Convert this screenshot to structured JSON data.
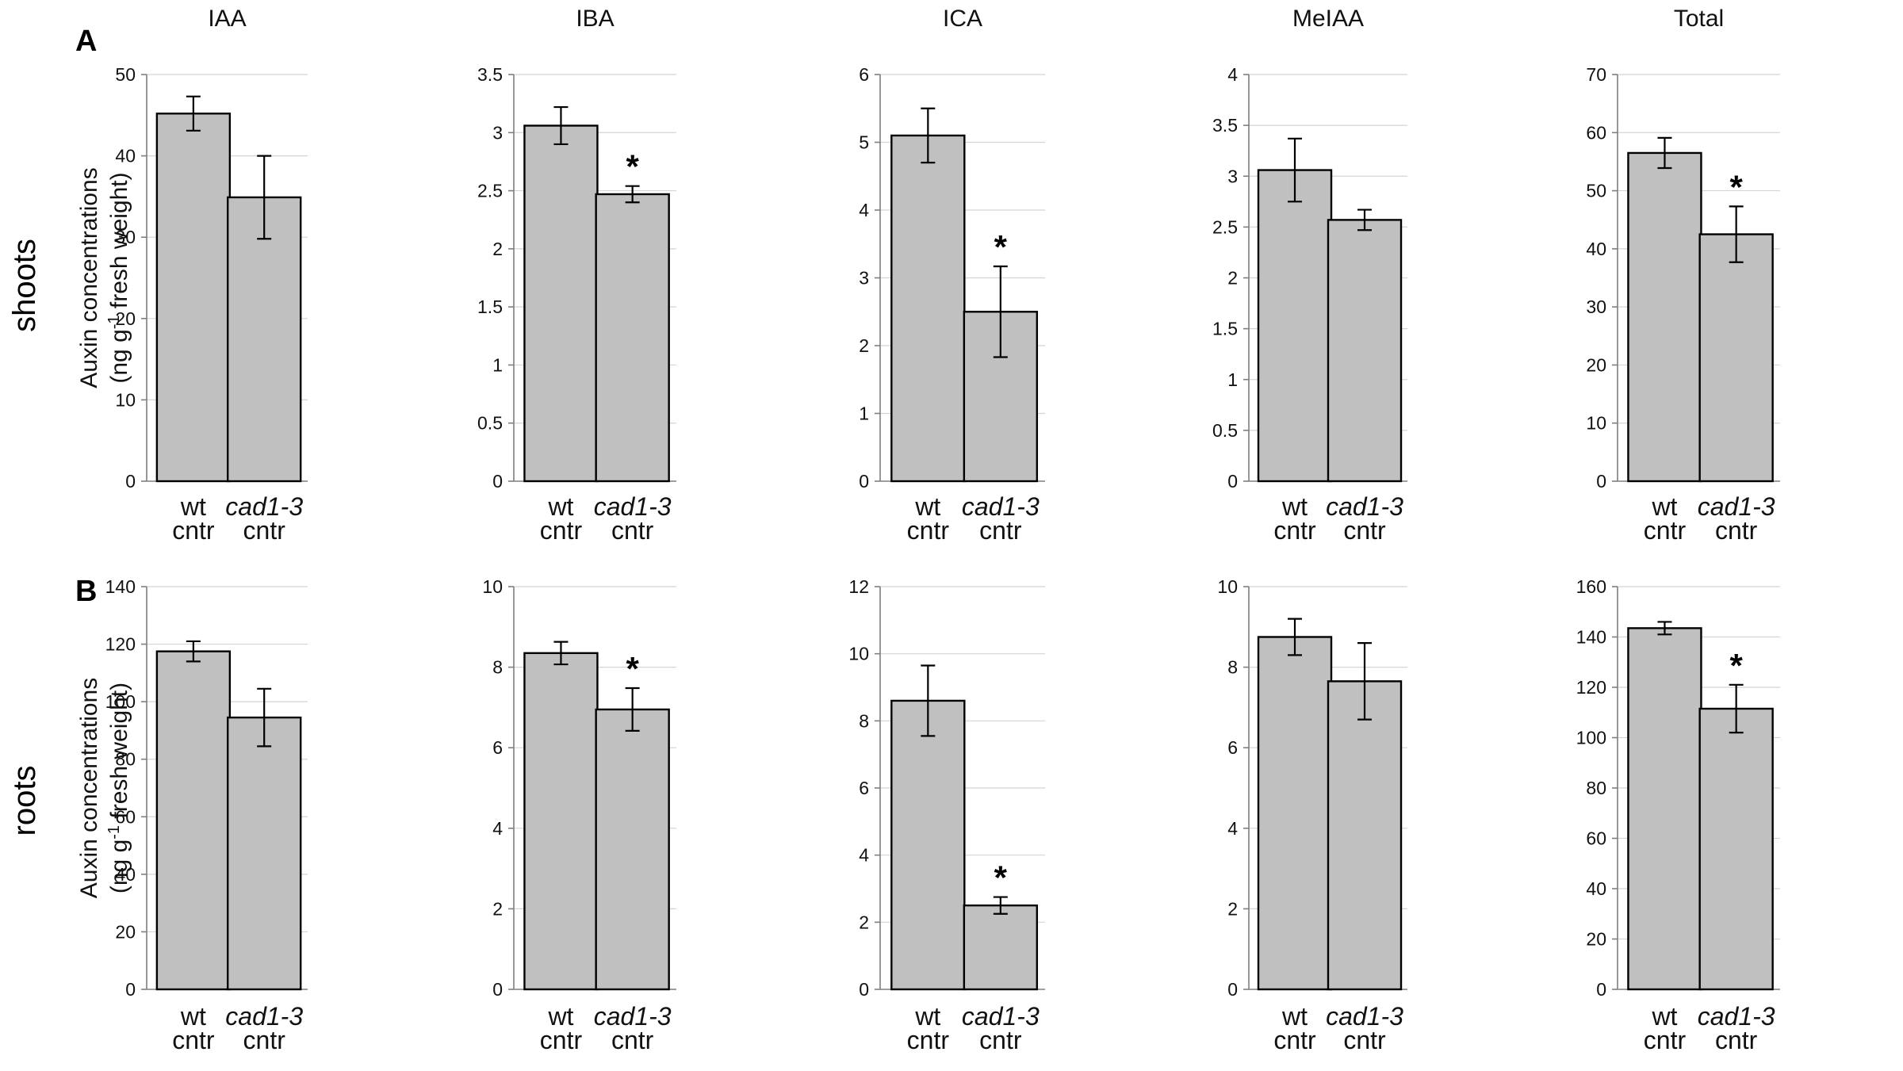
{
  "panel_labels": [
    "A",
    "B"
  ],
  "row_labels": [
    "shoots",
    "roots"
  ],
  "y_axis_label": {
    "line1": "Auxin concentrations",
    "line2_prefix": "(ng g",
    "line2_sup": "-1",
    "line2_suffix": " fresh weight)"
  },
  "categories": [
    {
      "line1": "wt",
      "line1_italic": false,
      "line2": "cntr"
    },
    {
      "line1": "cad1-3",
      "line1_italic": true,
      "line2": "cntr"
    }
  ],
  "significance_marker": "*",
  "colors": {
    "bar_fill": "#c0c0c0",
    "bar_stroke": "#000000",
    "grid": "#d4d4d4",
    "axis": "#7f7f7f"
  },
  "chart_data": [
    {
      "type": "bar",
      "row": "shoots",
      "title": "IAA",
      "categories": [
        "wt cntr",
        "cad1-3 cntr"
      ],
      "values": [
        45.2,
        34.9
      ],
      "errors": [
        2.1,
        5.1
      ],
      "significant": [
        false,
        false
      ],
      "ylim": [
        0,
        50
      ],
      "ticks": [
        "0",
        "10",
        "20",
        "30",
        "40",
        "50"
      ],
      "ylabel": "Auxin concentrations (ng g-1 fresh weight)"
    },
    {
      "type": "bar",
      "row": "shoots",
      "title": "IBA",
      "categories": [
        "wt cntr",
        "cad1-3 cntr"
      ],
      "values": [
        3.06,
        2.47
      ],
      "errors": [
        0.16,
        0.07
      ],
      "significant": [
        false,
        true
      ],
      "ylim": [
        0,
        3.5
      ],
      "ticks": [
        "0",
        "0.5",
        "1",
        "1.5",
        "2",
        "2.5",
        "3",
        "3.5"
      ]
    },
    {
      "type": "bar",
      "row": "shoots",
      "title": "ICA",
      "categories": [
        "wt cntr",
        "cad1-3 cntr"
      ],
      "values": [
        5.1,
        2.5
      ],
      "errors": [
        0.4,
        0.67
      ],
      "significant": [
        false,
        true
      ],
      "ylim": [
        0,
        6
      ],
      "ticks": [
        "0",
        "1",
        "2",
        "3",
        "4",
        "5",
        "6"
      ]
    },
    {
      "type": "bar",
      "row": "shoots",
      "title": "MeIAA",
      "categories": [
        "wt cntr",
        "cad1-3 cntr"
      ],
      "values": [
        3.06,
        2.57
      ],
      "errors": [
        0.31,
        0.1
      ],
      "significant": [
        false,
        false
      ],
      "ylim": [
        0,
        4
      ],
      "ticks": [
        "0",
        "0.5",
        "1",
        "1.5",
        "2",
        "2.5",
        "3",
        "3.5",
        "4"
      ]
    },
    {
      "type": "bar",
      "row": "shoots",
      "title": "Total",
      "categories": [
        "wt cntr",
        "cad1-3 cntr"
      ],
      "values": [
        56.5,
        42.5
      ],
      "errors": [
        2.6,
        4.8
      ],
      "significant": [
        false,
        true
      ],
      "ylim": [
        0,
        70
      ],
      "ticks": [
        "0",
        "10",
        "20",
        "30",
        "40",
        "50",
        "60",
        "70"
      ]
    },
    {
      "type": "bar",
      "row": "roots",
      "title": "",
      "categories": [
        "wt cntr",
        "cad1-3 cntr"
      ],
      "values": [
        117.5,
        94.5
      ],
      "errors": [
        3.5,
        10.0
      ],
      "significant": [
        false,
        false
      ],
      "ylim": [
        0,
        140
      ],
      "ticks": [
        "0",
        "20",
        "40",
        "60",
        "80",
        "100",
        "120",
        "140"
      ],
      "ylabel": "Auxin concentrations (ng g-1 fresh weight)"
    },
    {
      "type": "bar",
      "row": "roots",
      "title": "",
      "categories": [
        "wt cntr",
        "cad1-3 cntr"
      ],
      "values": [
        8.35,
        6.95
      ],
      "errors": [
        0.28,
        0.53
      ],
      "significant": [
        false,
        true
      ],
      "ylim": [
        0,
        10
      ],
      "ticks": [
        "0",
        "2",
        "4",
        "6",
        "8",
        "10"
      ]
    },
    {
      "type": "bar",
      "row": "roots",
      "title": "",
      "categories": [
        "wt cntr",
        "cad1-3 cntr"
      ],
      "values": [
        8.6,
        2.5
      ],
      "errors": [
        1.05,
        0.25
      ],
      "significant": [
        false,
        true
      ],
      "ylim": [
        0,
        12
      ],
      "ticks": [
        "0",
        "2",
        "4",
        "6",
        "8",
        "10",
        "12"
      ]
    },
    {
      "type": "bar",
      "row": "roots",
      "title": "",
      "categories": [
        "wt cntr",
        "cad1-3 cntr"
      ],
      "values": [
        8.75,
        7.65
      ],
      "errors": [
        0.45,
        0.95
      ],
      "significant": [
        false,
        false
      ],
      "ylim": [
        0,
        10
      ],
      "ticks": [
        "0",
        "2",
        "4",
        "6",
        "8",
        "10"
      ]
    },
    {
      "type": "bar",
      "row": "roots",
      "title": "",
      "categories": [
        "wt cntr",
        "cad1-3 cntr"
      ],
      "values": [
        143.5,
        111.5
      ],
      "errors": [
        2.5,
        9.5
      ],
      "significant": [
        false,
        true
      ],
      "ylim": [
        0,
        160
      ],
      "ticks": [
        "0",
        "20",
        "40",
        "60",
        "80",
        "100",
        "120",
        "140",
        "160"
      ]
    }
  ]
}
